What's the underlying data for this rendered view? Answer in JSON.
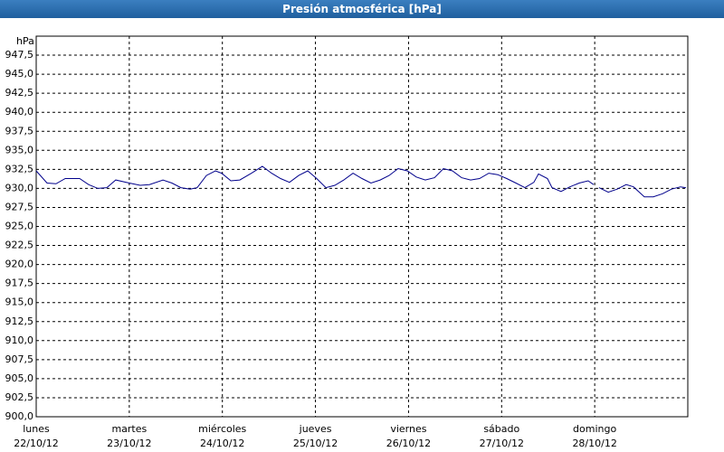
{
  "chart_data": {
    "type": "line",
    "title": "Presión atmosférica [hPa]",
    "ylabel": "hPa",
    "xlim": [
      0,
      168
    ],
    "xticks": [
      {
        "value": 0,
        "label": "22/10/12"
      },
      {
        "value": 24,
        "label": "23/10/12"
      },
      {
        "value": 48,
        "label": "24/10/12"
      },
      {
        "value": 72,
        "label": "25/10/12"
      },
      {
        "value": 96,
        "label": "26/10/12"
      },
      {
        "value": 120,
        "label": "27/10/12"
      },
      {
        "value": 144,
        "label": "28/10/12"
      }
    ],
    "weekdays": [
      "lunes",
      "martes",
      "miércoles",
      "jueves",
      "viernes",
      "sábado",
      "domingo"
    ],
    "ylim": [
      900,
      950
    ],
    "yticks": [
      {
        "value": 900,
        "label": "900,0"
      },
      {
        "value": 902.5,
        "label": "902,5"
      },
      {
        "value": 905,
        "label": "905,0"
      },
      {
        "value": 907.5,
        "label": "907,5"
      },
      {
        "value": 910,
        "label": "910,0"
      },
      {
        "value": 912.5,
        "label": "912,5"
      },
      {
        "value": 915,
        "label": "915,0"
      },
      {
        "value": 917.5,
        "label": "917,5"
      },
      {
        "value": 920,
        "label": "920,0"
      },
      {
        "value": 922.5,
        "label": "922,5"
      },
      {
        "value": 925,
        "label": "925,0"
      },
      {
        "value": 927.5,
        "label": "927,5"
      },
      {
        "value": 930,
        "label": "930,0"
      },
      {
        "value": 932.5,
        "label": "932,5"
      },
      {
        "value": 935,
        "label": "935,0"
      },
      {
        "value": 937.5,
        "label": "937,5"
      },
      {
        "value": 940,
        "label": "940,0"
      },
      {
        "value": 942.5,
        "label": "942,5"
      },
      {
        "value": 945,
        "label": "945,0"
      },
      {
        "value": 947.5,
        "label": "947,5"
      }
    ],
    "grid": true,
    "series": [
      {
        "color": "#00008b",
        "x": [
          0,
          2.8,
          5.1,
          7.5,
          11.2,
          13.5,
          15.9,
          18.2,
          20.5,
          24.0,
          26.8,
          29.2,
          32.7,
          35.0,
          37.3,
          39.7,
          41.5,
          43.9,
          46.2,
          47.8,
          50.2,
          52.5,
          55.5,
          58.3,
          60.7,
          63.0,
          65.3,
          67.7,
          70.0,
          72.3,
          74.7,
          77.0,
          79.3,
          81.7,
          84.0,
          86.3,
          88.7,
          91.0,
          93.3,
          95.7,
          98.0,
          100.3,
          102.7,
          105.0,
          107.3,
          109.7,
          112.0,
          114.3,
          116.7,
          119.0,
          121.3,
          123.7,
          126.0,
          128.3,
          129.5,
          131.8,
          133.0,
          135.3,
          137.6,
          140.0,
          142.3,
          143.7,
          144.4,
          145.1,
          147.5,
          149.8,
          152.1,
          154.0,
          156.8,
          159.1,
          161.5,
          163.8,
          166.1,
          167.5
        ],
        "values": [
          932.3,
          930.7,
          930.6,
          931.3,
          931.3,
          930.5,
          930.0,
          930.1,
          931.1,
          930.7,
          930.4,
          930.5,
          931.1,
          930.7,
          930.1,
          929.9,
          930.1,
          931.7,
          932.3,
          932.0,
          931.0,
          931.1,
          932.0,
          932.9,
          932.0,
          931.3,
          930.8,
          931.7,
          932.3,
          931.3,
          930.1,
          930.4,
          931.1,
          932.0,
          931.3,
          930.7,
          931.1,
          931.7,
          932.6,
          932.3,
          931.5,
          931.1,
          931.4,
          932.6,
          932.3,
          931.4,
          931.1,
          931.3,
          932.0,
          931.8,
          931.3,
          930.7,
          930.1,
          930.8,
          931.9,
          931.3,
          930.1,
          929.6,
          930.2,
          930.7,
          931.0,
          930.5,
          null,
          930.1,
          929.5,
          929.9,
          930.5,
          930.2,
          928.9,
          928.9,
          929.3,
          929.9,
          930.2,
          930.1
        ]
      }
    ]
  }
}
